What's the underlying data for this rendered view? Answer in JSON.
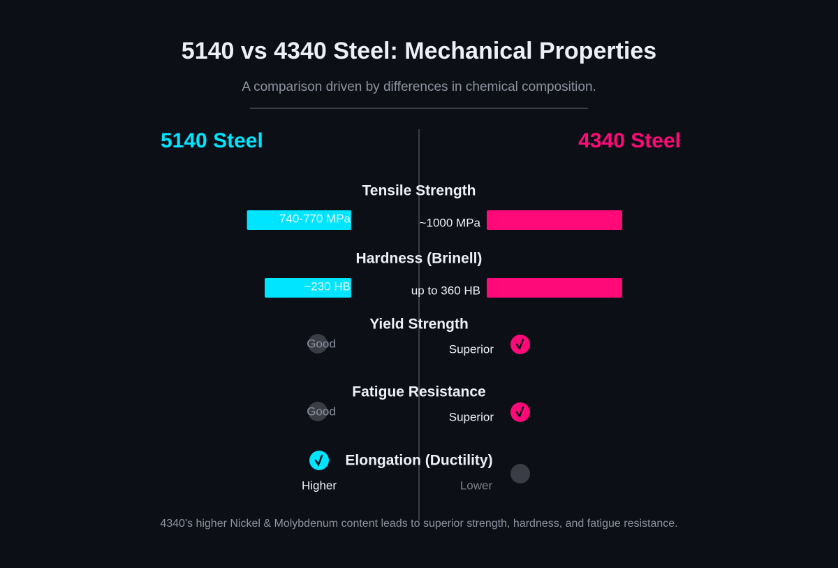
{
  "header": {
    "title": "5140 vs 4340 Steel: Mechanical Properties",
    "subtitle": "A comparison driven by differences in chemical composition."
  },
  "columns": [
    {
      "name": "5140 Steel",
      "color": "#00e5ff"
    },
    {
      "name": "4340 Steel",
      "color": "#ff0a78"
    }
  ],
  "rows": [
    {
      "label": "Tensile Strength",
      "kind": "bar",
      "left": {
        "text": "740-770 MPa",
        "value": 770
      },
      "right": {
        "text": "~1000 MPa",
        "value": 1000
      }
    },
    {
      "label": "Hardness (Brinell)",
      "kind": "bar",
      "left": {
        "text": "~230 HB",
        "value": 230
      },
      "right": {
        "text": "up to 360 HB",
        "value": 360
      }
    },
    {
      "label": "Yield Strength",
      "kind": "rating",
      "better": "right",
      "left": {
        "text": "Good"
      },
      "right": {
        "text": "Superior"
      }
    },
    {
      "label": "Fatigue Resistance",
      "kind": "rating",
      "better": "right",
      "left": {
        "text": "Good"
      },
      "right": {
        "text": "Superior"
      }
    },
    {
      "label": "Elongation (Ductility)",
      "kind": "rating",
      "better": "left",
      "left": {
        "text": "Higher"
      },
      "right": {
        "text": "Lower"
      }
    }
  ],
  "footer": "4340's higher Nickel & Molybdenum content leads to superior strength, hardness, and fatigue resistance."
}
